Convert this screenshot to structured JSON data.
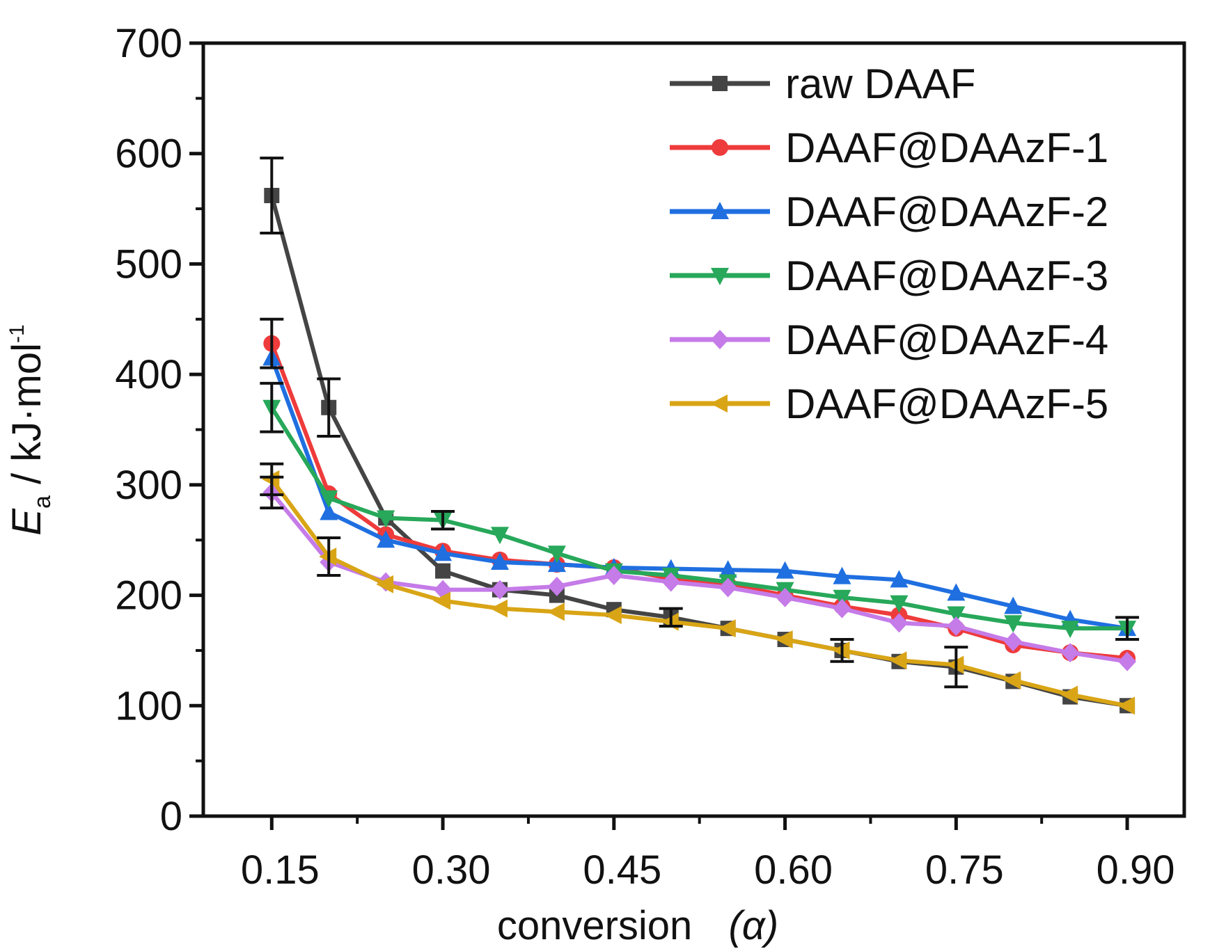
{
  "chart_data": {
    "type": "line",
    "ylabel": "E",
    "ylabel_sub": "a",
    "ylabel_unit": " / kJ·mol",
    "ylabel_sup": "-1",
    "xlabel": "conversion",
    "xlabel_symbol": "(α)",
    "xlim": [
      0.09,
      0.95
    ],
    "ylim": [
      0,
      700
    ],
    "xticks": [
      0.15,
      0.3,
      0.45,
      0.6,
      0.75,
      0.9
    ],
    "xtick_labels": [
      "0.15",
      "0.30",
      "0.45",
      "0.60",
      "0.75",
      "0.90"
    ],
    "yticks": [
      0,
      100,
      200,
      300,
      400,
      500,
      600,
      700
    ],
    "ytick_labels": [
      "0",
      "100",
      "200",
      "300",
      "400",
      "500",
      "600",
      "700"
    ],
    "grid": false,
    "legend_position": "top-right",
    "x": [
      0.15,
      0.2,
      0.25,
      0.3,
      0.35,
      0.4,
      0.45,
      0.5,
      0.55,
      0.6,
      0.65,
      0.7,
      0.75,
      0.8,
      0.85,
      0.9
    ],
    "series": [
      {
        "name": "raw DAAF",
        "color": "#444444",
        "marker": "square",
        "values": [
          562,
          370,
          270,
          222,
          205,
          200,
          187,
          180,
          170,
          160,
          150,
          140,
          135,
          122,
          108,
          100
        ],
        "errors": [
          34,
          26,
          0,
          0,
          0,
          0,
          0,
          8,
          0,
          0,
          10,
          0,
          18,
          0,
          0,
          0
        ]
      },
      {
        "name": "DAAF@DAAzF-1",
        "color": "#ee3b3b",
        "marker": "circle",
        "values": [
          428,
          292,
          255,
          240,
          232,
          228,
          225,
          215,
          210,
          200,
          190,
          182,
          170,
          155,
          148,
          143
        ],
        "errors": [
          22,
          0,
          0,
          0,
          0,
          0,
          0,
          0,
          0,
          0,
          0,
          0,
          0,
          0,
          0,
          0
        ]
      },
      {
        "name": "DAAF@DAAzF-2",
        "color": "#1f6fe0",
        "marker": "triangle-up",
        "values": [
          415,
          275,
          250,
          238,
          230,
          228,
          225,
          224,
          223,
          222,
          217,
          214,
          202,
          190,
          178,
          170
        ],
        "errors": [
          0,
          0,
          0,
          0,
          0,
          0,
          0,
          0,
          0,
          0,
          0,
          0,
          0,
          0,
          0,
          0
        ]
      },
      {
        "name": "DAAF@DAAzF-3",
        "color": "#27a85a",
        "marker": "triangle-down",
        "values": [
          370,
          288,
          270,
          268,
          255,
          238,
          222,
          218,
          212,
          205,
          198,
          193,
          183,
          175,
          170,
          170
        ],
        "errors": [
          22,
          0,
          0,
          8,
          0,
          0,
          0,
          0,
          0,
          0,
          0,
          0,
          0,
          0,
          0,
          10
        ]
      },
      {
        "name": "DAAF@DAAzF-4",
        "color": "#c57be8",
        "marker": "diamond",
        "values": [
          293,
          230,
          212,
          205,
          205,
          208,
          218,
          212,
          207,
          198,
          188,
          175,
          172,
          158,
          148,
          140
        ],
        "errors": [
          14,
          0,
          0,
          0,
          0,
          0,
          0,
          0,
          0,
          0,
          0,
          0,
          0,
          0,
          0,
          0
        ]
      },
      {
        "name": "DAAF@DAAzF-5",
        "color": "#d9a516",
        "marker": "triangle-left",
        "values": [
          305,
          235,
          210,
          195,
          188,
          185,
          182,
          176,
          170,
          160,
          150,
          141,
          137,
          123,
          110,
          100
        ],
        "errors": [
          14,
          17,
          0,
          0,
          0,
          0,
          0,
          0,
          0,
          0,
          0,
          0,
          0,
          0,
          0,
          0
        ]
      }
    ]
  }
}
